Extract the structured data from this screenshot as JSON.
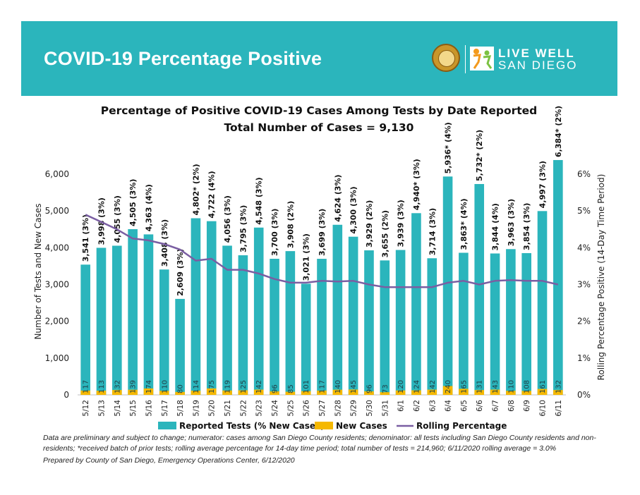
{
  "header": {
    "title": "COVID-19 Percentage Positive",
    "logo_line1": "LIVE WELL",
    "logo_line2": "SAN DIEGO"
  },
  "colors": {
    "banner": "#2bb5bc",
    "bars": "#2bb5bc",
    "new_cases": "#f5b800",
    "rolling_line": "#7a5ea2"
  },
  "icons": [
    "county-seal-icon",
    "live-well-logo-icon"
  ],
  "chart_data": {
    "type": "bar",
    "title": "Percentage of Positive COVID-19 Cases Among Tests by Date Reported",
    "subtitle": "Total Number of Cases = 9,130",
    "xlabel": "",
    "ylabel": "Number of Tests and New Cases",
    "y2label": "Rolling Percentage Positive (14-Day Time Period)",
    "ylim": [
      0,
      6000
    ],
    "y2lim": [
      0,
      6
    ],
    "y_ticks": [
      "0",
      "1,000",
      "2,000",
      "3,000",
      "4,000",
      "5,000",
      "6,000"
    ],
    "y2_ticks": [
      "0%",
      "1%",
      "2%",
      "3%",
      "4%",
      "5%",
      "6%"
    ],
    "grid": false,
    "legend_position": "bottom",
    "categories": [
      "5/12",
      "5/13",
      "5/14",
      "5/15",
      "5/16",
      "5/17",
      "5/18",
      "5/19",
      "5/20",
      "5/21",
      "5/22",
      "5/23",
      "5/24",
      "5/25",
      "5/26",
      "5/27",
      "5/28",
      "5/29",
      "5/30",
      "5/31",
      "6/1",
      "6/2",
      "6/3",
      "6/4",
      "6/5",
      "6/6",
      "6/7",
      "6/8",
      "6/9",
      "6/10",
      "6/11"
    ],
    "series": [
      {
        "name": "Reported Tests (% New Cases)",
        "type": "bar",
        "values": [
          3541,
          3998,
          4055,
          4505,
          4363,
          3408,
          2609,
          4802,
          4722,
          4056,
          3795,
          4548,
          3700,
          3908,
          3021,
          3699,
          4624,
          4300,
          3929,
          3655,
          3939,
          4940,
          3714,
          5936,
          3863,
          5732,
          3844,
          3963,
          3854,
          4997,
          6384
        ],
        "labels": [
          "3,541 (3%)",
          "3,998 (3%)",
          "4,055 (3%)",
          "4,505 (3%)",
          "4,363 (4%)",
          "3,408 (3%)",
          "2,609 (3%)",
          "4,802* (2%)",
          "4,722 (4%)",
          "4,056 (3%)",
          "3,795 (3%)",
          "4,548 (3%)",
          "3,700 (3%)",
          "3,908 (2%)",
          "3,021 (3%)",
          "3,699 (3%)",
          "4,624 (3%)",
          "4,300 (3%)",
          "3,929 (2%)",
          "3,655 (2%)",
          "3,939 (3%)",
          "4,940* (3%)",
          "3,714 (3%)",
          "5,936* (4%)",
          "3,863* (4%)",
          "5,732* (2%)",
          "3,844 (4%)",
          "3,963 (3%)",
          "3,854 (3%)",
          "4,997 (3%)",
          "6,384* (2%)"
        ]
      },
      {
        "name": "New Cases",
        "type": "bar",
        "values": [
          117,
          113,
          132,
          139,
          174,
          110,
          80,
          114,
          175,
          119,
          125,
          142,
          96,
          85,
          101,
          117,
          140,
          145,
          96,
          73,
          120,
          124,
          142,
          240,
          165,
          131,
          143,
          110,
          108,
          161,
          132
        ]
      },
      {
        "name": "Rolling Percentage",
        "type": "line",
        "axis": "right",
        "values": [
          4.9,
          4.7,
          4.5,
          4.25,
          4.2,
          4.1,
          3.95,
          3.65,
          3.7,
          3.4,
          3.4,
          3.3,
          3.15,
          3.05,
          3.05,
          3.1,
          3.08,
          3.1,
          3.0,
          2.93,
          2.93,
          2.93,
          2.93,
          3.05,
          3.1,
          3.0,
          3.1,
          3.12,
          3.1,
          3.1,
          3.0
        ]
      }
    ]
  },
  "notes": {
    "line1": "Data are preliminary and subject to change; numerator: cases among San Diego County residents; denominator: all tests including San Diego County residents and non-residents; *received batch of prior tests; rolling average percentage for 14-day time period; total number of tests = 214,960; 6/11/2020 rolling average = 3.0%",
    "line2": "Prepared by County of San Diego, Emergency Operations Center, 6/12/2020"
  }
}
